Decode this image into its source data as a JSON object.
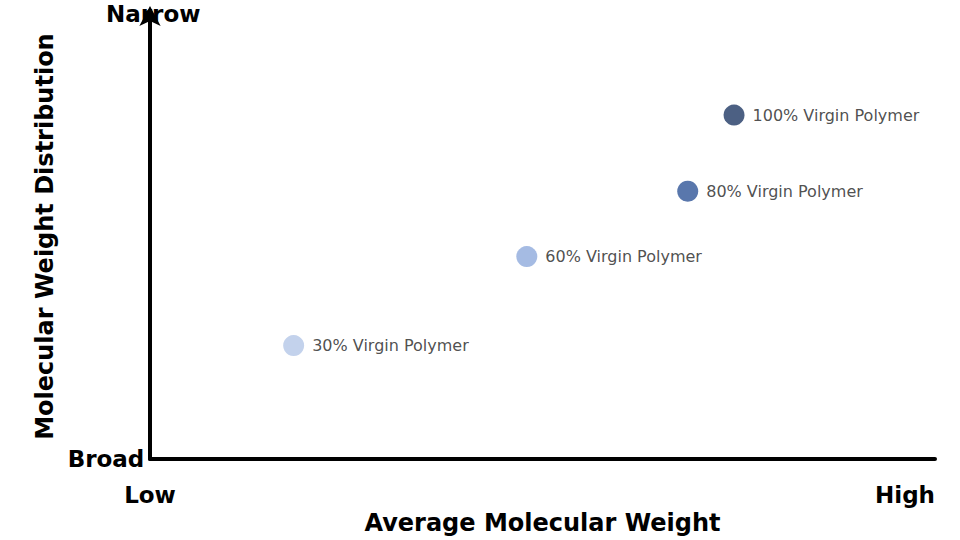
{
  "chart_data": {
    "type": "scatter",
    "x_label": "Average Molecular Weight",
    "y_label": "Molecular Weight Distribution",
    "x": [
      74.4,
      68.5,
      48.0,
      18.3
    ],
    "values": [
      77.3,
      60.2,
      45.5,
      25.5
    ],
    "point_labels": [
      "100% Virgin Polymer",
      "80% Virgin Polymer",
      "60% Virgin Polymer",
      "30% Virgin Polymer"
    ],
    "colors": [
      "#1f3864",
      "#2f5597",
      "#8faadc",
      "#b4c7e7"
    ],
    "xlim": [
      0,
      100
    ],
    "ylim": [
      0,
      100
    ],
    "xticks": [
      {
        "value": 0,
        "label": "Low"
      },
      {
        "value": 100,
        "label": "High"
      }
    ],
    "yticks": [
      {
        "value": 0,
        "label": "Broad"
      },
      {
        "value": 100,
        "label": "Narrow"
      }
    ],
    "grid": false,
    "marker": "circle"
  }
}
